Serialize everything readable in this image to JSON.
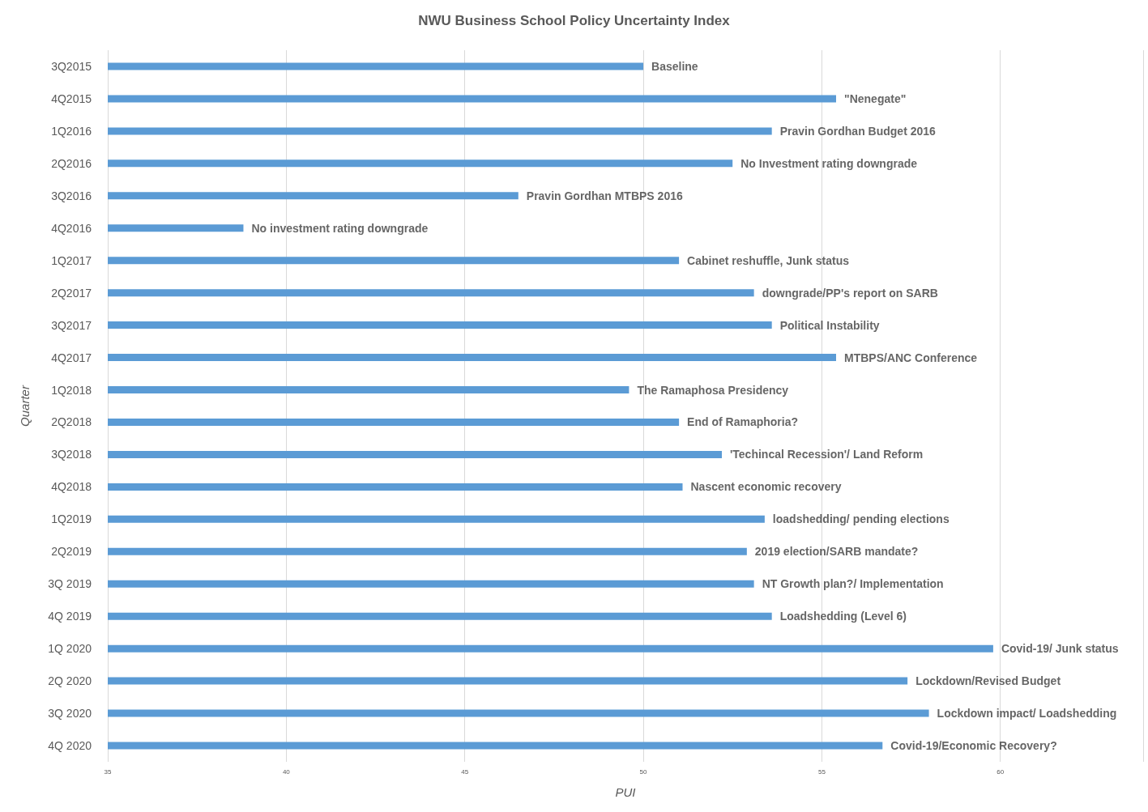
{
  "chart_data": {
    "type": "bar",
    "orientation": "horizontal",
    "title": "NWU Business School Policy Uncertainty Index",
    "xlabel": "PUI",
    "ylabel": "Quarter",
    "categories": [
      "3Q2015",
      "4Q2015",
      "1Q2016",
      "2Q2016",
      "3Q2016",
      "4Q2016",
      "1Q2017",
      "2Q2017",
      "3Q2017",
      "4Q2017",
      "1Q2018",
      "2Q2018",
      "3Q2018",
      "4Q2018",
      "1Q2019",
      "2Q2019",
      "3Q 2019",
      "4Q 2019",
      "1Q 2020",
      "2Q 2020",
      "3Q 2020",
      "4Q 2020"
    ],
    "values": [
      50.0,
      55.4,
      53.6,
      52.5,
      46.5,
      38.8,
      51.0,
      53.1,
      53.6,
      55.4,
      49.6,
      51.0,
      52.2,
      51.1,
      53.4,
      52.9,
      53.1,
      53.6,
      59.8,
      57.4,
      58.0,
      56.7
    ],
    "color": "#5b9bd5",
    "xlim": [
      35,
      64
    ],
    "xticks": [
      35,
      40,
      45,
      50,
      55,
      60
    ],
    "grid": "x",
    "annotations": [
      {
        "text": "Baseline",
        "x": 50.0,
        "y": "3Q2015"
      },
      {
        "text": "\"Nenegate\"",
        "x": 55.4,
        "y": "4Q2015"
      },
      {
        "text": "Pravin Gordhan Budget 2016",
        "x": 53.6,
        "y": "1Q2016"
      },
      {
        "text": "No Investment rating downgrade",
        "x": 52.5,
        "y": "2Q2016"
      },
      {
        "text": "Pravin Gordhan MTBPS 2016",
        "x": 46.5,
        "y": "3Q2016"
      },
      {
        "text": "No investment rating downgrade",
        "x": 38.8,
        "y": "4Q2016"
      },
      {
        "text": "Cabinet reshuffle, Junk status",
        "x": 51.0,
        "y": "1Q2017"
      },
      {
        "text": "downgrade/PP's report on SARB",
        "x": 53.1,
        "y": "2Q2017"
      },
      {
        "text": "Political Instability",
        "x": 53.6,
        "y": "3Q2017"
      },
      {
        "text": "MTBPS/ANC Conference",
        "x": 55.4,
        "y": "4Q2017"
      },
      {
        "text": "The Ramaphosa Presidency",
        "x": 49.6,
        "y": "1Q2018"
      },
      {
        "text": "End of Ramaphoria?",
        "x": 51.0,
        "y": "2Q2018"
      },
      {
        "text": "'Techincal Recession'/ Land Reform",
        "x": 52.2,
        "y": "3Q2018"
      },
      {
        "text": "Nascent economic recovery",
        "x": 51.1,
        "y": "4Q2018"
      },
      {
        "text": "loadshedding/ pending elections",
        "x": 53.4,
        "y": "1Q2019"
      },
      {
        "text": "2019 election/SARB mandate?",
        "x": 52.9,
        "y": "2Q2019"
      },
      {
        "text": "NT Growth plan?/ Implementation",
        "x": 53.1,
        "y": "3Q 2019"
      },
      {
        "text": "Loadshedding (Level 6)",
        "x": 53.6,
        "y": "4Q 2019"
      },
      {
        "text": "Covid-19/ Junk status",
        "x": 59.8,
        "y": "1Q 2020"
      },
      {
        "text": "Lockdown/Revised Budget",
        "x": 57.4,
        "y": "2Q 2020"
      },
      {
        "text": "Lockdown impact/ Loadshedding",
        "x": 58.0,
        "y": "3Q 2020"
      },
      {
        "text": "Covid-19/Economic Recovery?",
        "x": 56.7,
        "y": "4Q 2020"
      }
    ]
  }
}
